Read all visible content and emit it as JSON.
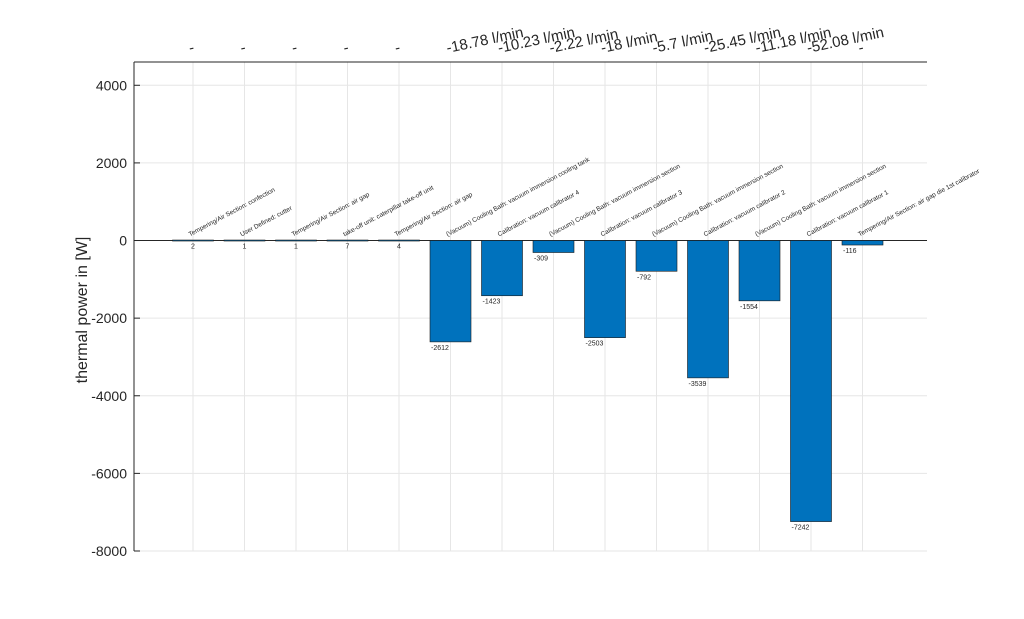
{
  "chart_data": {
    "type": "bar",
    "title": "",
    "xlabel": "",
    "ylabel": "thermal power in [W]",
    "ylim": [
      -8000,
      4600
    ],
    "yticks": [
      4000,
      2000,
      0,
      -2000,
      -4000,
      -6000,
      -8000
    ],
    "grid": true,
    "bar_color": "#0072bd",
    "categories": [
      "Tempering/Air Section: confection",
      "User Defined: cutter",
      "Tempering/Air Section: air gap",
      "take-off unit: caterpillar take-off unit",
      "Tempering/Air Section: air gap",
      "(Vacuum) Cooling Bath: vacuum immersion cooling tank",
      "Calibration: vacuum calibrator 4",
      "(Vacuum) Cooling Bath: vacuum immersion section",
      "Calibration: vacuum calibrator 3",
      "(Vacuum) Cooling Bath: vacuum immersion section",
      "Calibration: vacuum calibrator 2",
      "(Vacuum) Cooling Bath: vacuum immersion section",
      "Calibration: vacuum calibrator 1",
      "Tempering/Air Section: air gap die 1st calibrator"
    ],
    "values": [
      2,
      1,
      1,
      7,
      4,
      -2612,
      -1423,
      -309,
      -2503,
      -792,
      -3539,
      -1554,
      -7242,
      -116
    ],
    "value_labels": [
      "2",
      "1",
      "1",
      "7",
      "4",
      "-2612",
      "-1423",
      "-309",
      "-2503",
      "-792",
      "-3539",
      "-1554",
      "-7242",
      "-116"
    ],
    "flow_labels": [
      "-",
      "-",
      "-",
      "-",
      "-",
      "-18.78 l/min",
      "-10.23 l/min",
      "-2.22 l/min",
      "-18 l/min",
      "-5.7 l/min",
      "-25.45 l/min",
      "-11.18 l/min",
      "-52.08 l/min",
      "-"
    ]
  }
}
